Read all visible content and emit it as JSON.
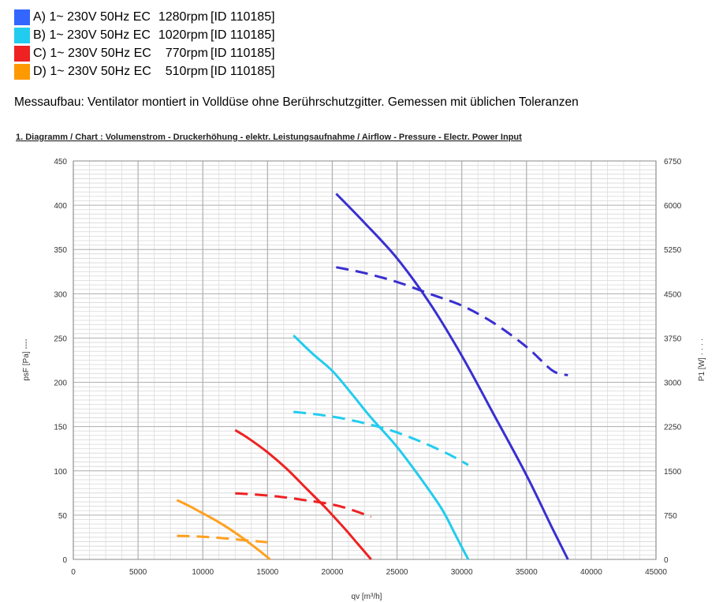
{
  "legend": [
    {
      "label": "A) 1~ 230V 50Hz EC",
      "rpm": "1280rpm",
      "id": "[ID 110185]",
      "color": "#3366ff"
    },
    {
      "label": "B) 1~ 230V 50Hz EC",
      "rpm": "1020rpm",
      "id": "[ID 110185]",
      "color": "#22ccee"
    },
    {
      "label": "C) 1~ 230V 50Hz EC",
      "rpm": "770rpm",
      "id": "[ID 110185]",
      "color": "#ee2222"
    },
    {
      "label": "D) 1~ 230V 50Hz EC",
      "rpm": "510rpm",
      "id": "[ID 110185]",
      "color": "#ff9900"
    }
  ],
  "setup_text": "Messaufbau: Ventilator montiert in Volldüse ohne Berührschutzgitter. Gemessen mit üblichen  Toleranzen",
  "chart_data": {
    "type": "line",
    "title": "1. Diagramm / Chart :   Volumenstrom - Druckerhöhung - elektr. Leistungsaufnahme / Airflow - Pressure - Electr. Power Input",
    "xlabel": "qv [m³/h]",
    "ylabel": "psF [Pa]",
    "y2label": "P1 [W]",
    "xlim": [
      0,
      45000
    ],
    "ylim": [
      0,
      450
    ],
    "y2lim": [
      0,
      6750
    ],
    "x_ticks": [
      0,
      5000,
      10000,
      15000,
      20000,
      25000,
      30000,
      35000,
      40000,
      45000
    ],
    "y_ticks": [
      0,
      50,
      100,
      150,
      200,
      250,
      300,
      350,
      400,
      450
    ],
    "y2_ticks": [
      0,
      750,
      1500,
      2250,
      3000,
      3750,
      4500,
      5250,
      6000,
      6750
    ],
    "grid": true,
    "series": [
      {
        "key": "A-pressure",
        "axis": "left",
        "style": "solid",
        "color": "#3a2fd0",
        "points": [
          [
            20300,
            413
          ],
          [
            22500,
            380
          ],
          [
            25000,
            340
          ],
          [
            27500,
            290
          ],
          [
            30000,
            230
          ],
          [
            32500,
            163
          ],
          [
            35000,
            95
          ],
          [
            37000,
            35
          ],
          [
            38200,
            0
          ]
        ]
      },
      {
        "key": "A-power",
        "axis": "right",
        "style": "dashed",
        "color": "#3a2fd0",
        "points": [
          [
            20300,
            4950
          ],
          [
            22500,
            4850
          ],
          [
            25000,
            4700
          ],
          [
            27500,
            4500
          ],
          [
            30000,
            4300
          ],
          [
            32500,
            4000
          ],
          [
            35000,
            3600
          ],
          [
            37000,
            3200
          ],
          [
            38200,
            3120
          ]
        ]
      },
      {
        "key": "B-pressure",
        "axis": "left",
        "style": "solid",
        "color": "#22ccee",
        "points": [
          [
            17000,
            253
          ],
          [
            18500,
            232
          ],
          [
            20000,
            213
          ],
          [
            21500,
            187
          ],
          [
            23000,
            160
          ],
          [
            25000,
            127
          ],
          [
            27000,
            88
          ],
          [
            28500,
            56
          ],
          [
            29500,
            28
          ],
          [
            30500,
            0
          ]
        ]
      },
      {
        "key": "B-power",
        "axis": "right",
        "style": "dashed",
        "color": "#22ccee",
        "points": [
          [
            17000,
            2500
          ],
          [
            19000,
            2450
          ],
          [
            21000,
            2380
          ],
          [
            23000,
            2280
          ],
          [
            25000,
            2150
          ],
          [
            27000,
            1980
          ],
          [
            29000,
            1780
          ],
          [
            30500,
            1600
          ]
        ]
      },
      {
        "key": "C-pressure",
        "axis": "left",
        "style": "solid",
        "color": "#ee2222",
        "points": [
          [
            12500,
            146
          ],
          [
            13500,
            137
          ],
          [
            15000,
            121
          ],
          [
            16500,
            102
          ],
          [
            18000,
            80
          ],
          [
            19500,
            58
          ],
          [
            21000,
            34
          ],
          [
            22000,
            17
          ],
          [
            23000,
            0
          ]
        ]
      },
      {
        "key": "C-power",
        "axis": "right",
        "style": "dashed",
        "color": "#ee2222",
        "points": [
          [
            12500,
            1120
          ],
          [
            14000,
            1100
          ],
          [
            16000,
            1060
          ],
          [
            18000,
            1000
          ],
          [
            20000,
            930
          ],
          [
            21500,
            840
          ],
          [
            23000,
            720
          ]
        ]
      },
      {
        "key": "D-pressure",
        "axis": "left",
        "style": "solid",
        "color": "#ffa020",
        "points": [
          [
            8000,
            67
          ],
          [
            9000,
            60
          ],
          [
            10000,
            52
          ],
          [
            11000,
            44
          ],
          [
            12000,
            35
          ],
          [
            13000,
            25
          ],
          [
            14000,
            14
          ],
          [
            14700,
            6
          ],
          [
            15200,
            0
          ]
        ]
      },
      {
        "key": "D-power",
        "axis": "right",
        "style": "dashed",
        "color": "#ffa020",
        "points": [
          [
            8000,
            400
          ],
          [
            9500,
            390
          ],
          [
            11000,
            370
          ],
          [
            12500,
            340
          ],
          [
            14000,
            310
          ],
          [
            15000,
            290
          ]
        ]
      }
    ]
  }
}
